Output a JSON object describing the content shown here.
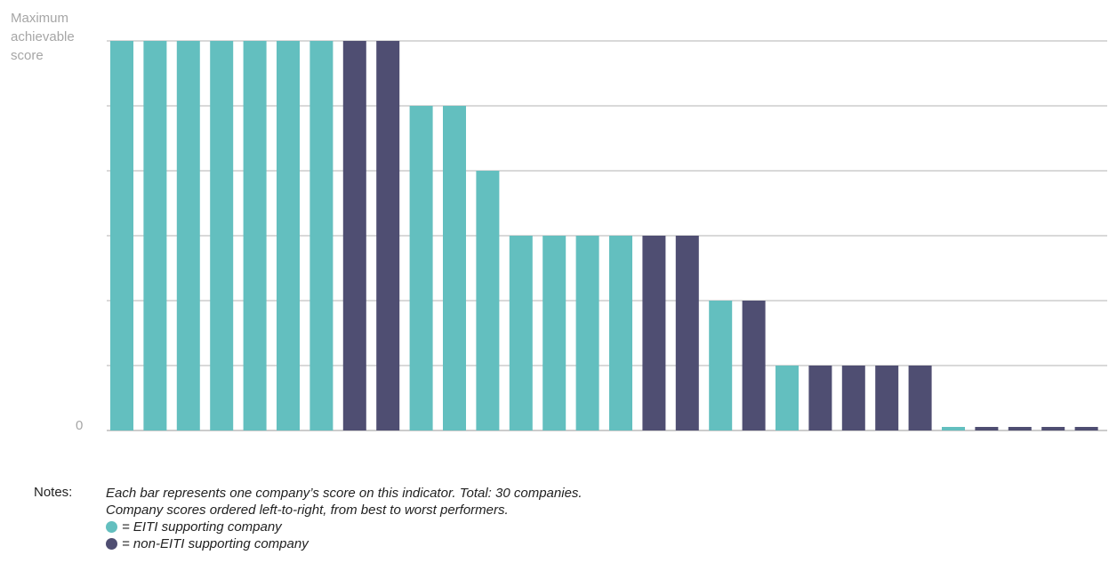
{
  "chart_data": {
    "type": "bar",
    "y_axis": {
      "max_label": "Maximum achievable score",
      "min_label": "0"
    },
    "ylim": [
      0,
      6
    ],
    "gridlines": [
      1,
      2,
      3,
      4,
      5,
      6
    ],
    "values": [
      6,
      6,
      6,
      6,
      6,
      6,
      6,
      6,
      6,
      5,
      5,
      4,
      3,
      3,
      3,
      3,
      3,
      3,
      2,
      2,
      1,
      1,
      1,
      1,
      1,
      0,
      0,
      0,
      0,
      0
    ],
    "groups": [
      "eiti",
      "eiti",
      "eiti",
      "eiti",
      "eiti",
      "eiti",
      "eiti",
      "non",
      "non",
      "eiti",
      "eiti",
      "eiti",
      "eiti",
      "eiti",
      "eiti",
      "eiti",
      "non",
      "non",
      "eiti",
      "non",
      "eiti",
      "non",
      "non",
      "non",
      "non",
      "eiti",
      "non",
      "non",
      "non",
      "non"
    ],
    "colors": {
      "eiti": "#63bfbf",
      "non": "#4f4e72"
    }
  },
  "notes": {
    "label": "Notes:",
    "line1": "Each bar represents one company’s score on this indicator. Total: 30 companies.",
    "line2": "Company scores ordered left-to-right, from best to worst performers.",
    "legend_eiti": "= EITI supporting company",
    "legend_non": "= non-EITI supporting company"
  }
}
